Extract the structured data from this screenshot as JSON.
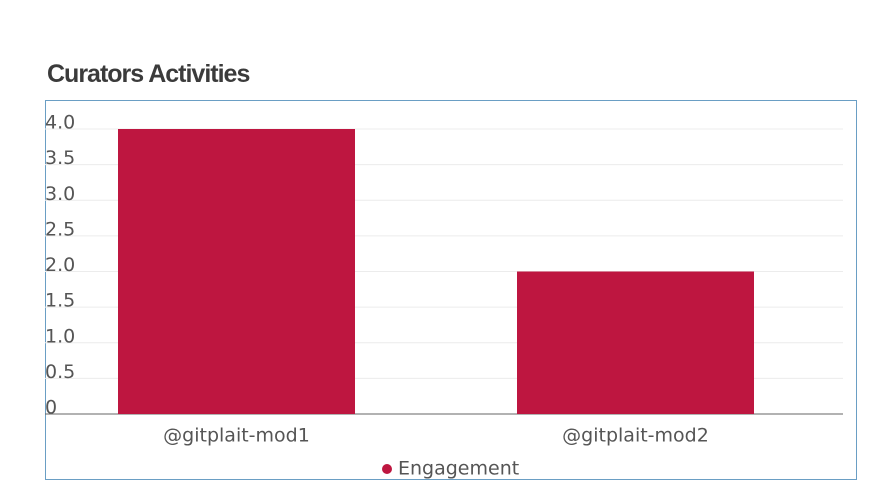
{
  "chart_data": {
    "type": "bar",
    "title": "Curators Activities",
    "categories": [
      "@gitplait-mod1",
      "@gitplait-mod2"
    ],
    "series": [
      {
        "name": "Engagement",
        "values": [
          4,
          2
        ],
        "color": "#be1640"
      }
    ],
    "yticks": [
      "4.0",
      "3.5",
      "3.0",
      "2.5",
      "2.0",
      "1.5",
      "1.0",
      "0.5",
      "0"
    ],
    "ylim": [
      0,
      4
    ],
    "grid": true,
    "legend_position": "bottom"
  }
}
